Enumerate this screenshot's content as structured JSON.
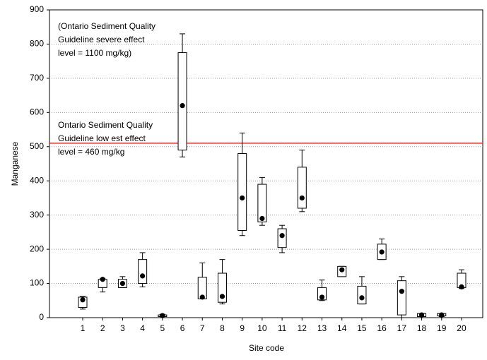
{
  "chart_data": {
    "type": "box",
    "x_label": "Site code",
    "y_label": "Manganese",
    "categories": [
      "1",
      "2",
      "3",
      "4",
      "5",
      "6",
      "7",
      "8",
      "9",
      "10",
      "11",
      "12",
      "13",
      "14",
      "15",
      "16",
      "17",
      "18",
      "19",
      "20"
    ],
    "values": [
      52,
      112,
      100,
      122,
      6,
      620,
      60,
      62,
      350,
      290,
      240,
      350,
      60,
      140,
      58,
      192,
      77,
      8,
      8,
      90
    ],
    "box_low": [
      30,
      88,
      88,
      100,
      3,
      490,
      55,
      45,
      255,
      280,
      205,
      320,
      52,
      120,
      40,
      170,
      8,
      3,
      5,
      88
    ],
    "box_high": [
      60,
      112,
      112,
      170,
      8,
      775,
      118,
      130,
      480,
      390,
      260,
      440,
      88,
      150,
      92,
      215,
      108,
      12,
      12,
      130
    ],
    "whisker_low": [
      25,
      75,
      88,
      90,
      3,
      470,
      55,
      40,
      240,
      270,
      190,
      310,
      50,
      120,
      40,
      170,
      0,
      0,
      3,
      85
    ],
    "whisker_high": [
      62,
      115,
      120,
      190,
      10,
      830,
      160,
      170,
      540,
      410,
      270,
      490,
      110,
      150,
      120,
      230,
      120,
      12,
      12,
      140
    ],
    "color": "#000000",
    "ylim": [
      0,
      900
    ],
    "yticks": [
      0,
      100,
      200,
      300,
      400,
      500,
      600,
      700,
      800,
      900
    ],
    "grid": true,
    "reference_line": {
      "value": 510,
      "color": "#e8302a"
    },
    "annotations": [
      {
        "lines": [
          "(Ontario Sediment Quality",
          "Guideline severe effect",
          "level = 1100 mg/kg)"
        ]
      },
      {
        "lines": [
          "Ontario Sediment Quality",
          "Guideline low est effect",
          "level = 460 mg/kg"
        ]
      }
    ]
  }
}
